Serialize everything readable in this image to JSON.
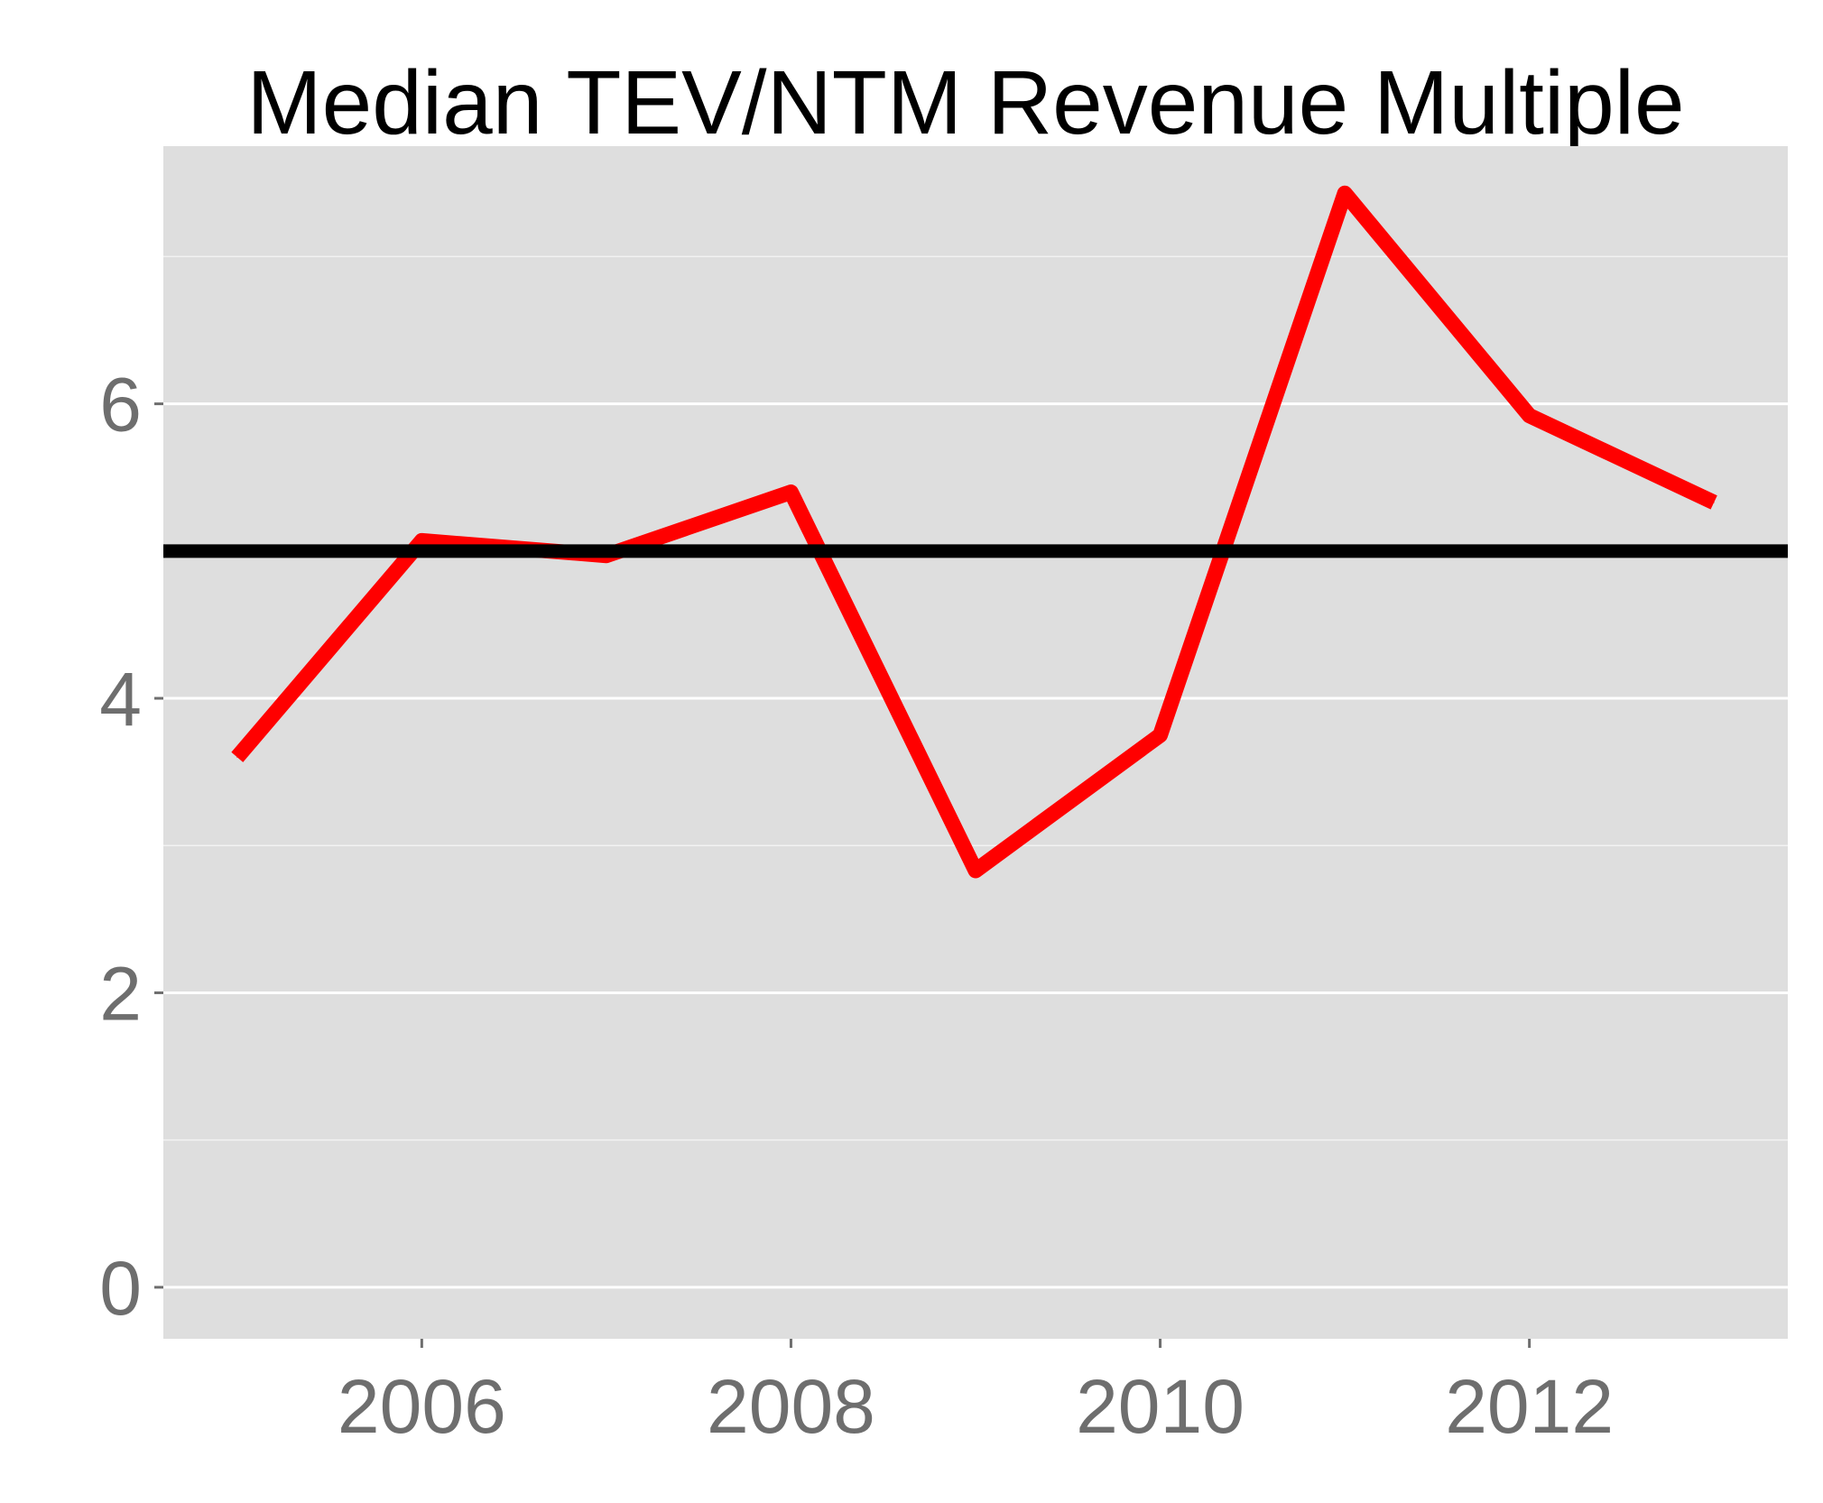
{
  "chart_data": {
    "type": "line",
    "title": "Median TEV/NTM Revenue Multiple",
    "xlabel": "",
    "ylabel": "",
    "x": [
      2005,
      2006,
      2007,
      2008,
      2009,
      2010,
      2011,
      2012,
      2013
    ],
    "series": [
      {
        "values": [
          3.6,
          5.07,
          4.97,
          5.4,
          2.83,
          3.75,
          7.43,
          5.92,
          5.33
        ],
        "color": "#ff0000"
      }
    ],
    "reference_line": {
      "y": 5.0,
      "color": "#000000"
    },
    "xlim": [
      2004.6,
      2013.4
    ],
    "ylim": [
      -0.35,
      7.75
    ],
    "x_ticks": [
      {
        "value": 2006,
        "label": "2006"
      },
      {
        "value": 2008,
        "label": "2008"
      },
      {
        "value": 2010,
        "label": "2010"
      },
      {
        "value": 2012,
        "label": "2012"
      }
    ],
    "y_ticks": [
      {
        "value": 0,
        "label": "0"
      },
      {
        "value": 2,
        "label": "2"
      },
      {
        "value": 4,
        "label": "4"
      },
      {
        "value": 6,
        "label": "6"
      }
    ],
    "y_minor_gridlines": [
      1,
      3,
      5,
      7
    ],
    "grid": true,
    "panel_background": "#dedede",
    "gridline_color": "#ffffff",
    "legend": "none"
  }
}
